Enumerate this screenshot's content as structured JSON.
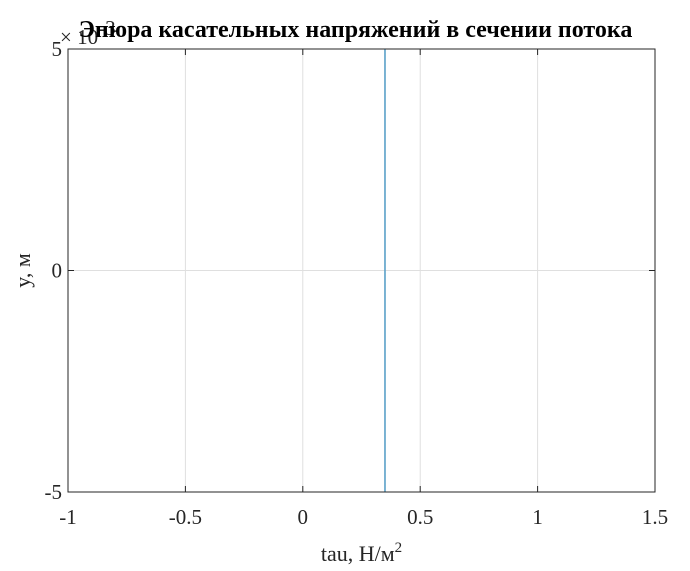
{
  "chart_data": {
    "type": "line",
    "title": "Эпюра касательных напряжений в сечении потока",
    "xlabel": "tau, Н/м",
    "xlabel_superscript": "2",
    "ylabel": "y, м",
    "xlim": [
      -1,
      1.5
    ],
    "ylim": [
      -5,
      5
    ],
    "y_multiplier_text": "× 10",
    "y_multiplier_exponent": "-3",
    "x_ticks": [
      -1,
      -0.5,
      0,
      0.5,
      1,
      1.5
    ],
    "x_tick_labels": [
      "-1",
      "-0.5",
      "0",
      "0.5",
      "1",
      "1.5"
    ],
    "y_ticks": [
      -5,
      0,
      5
    ],
    "y_tick_labels": [
      "-5",
      "0",
      "5"
    ],
    "grid": true,
    "series": [
      {
        "x": [
          0.35,
          0.35
        ],
        "y": [
          -5,
          5
        ],
        "color": "#5aa0c8"
      }
    ]
  },
  "colors": {
    "axis": "#262626",
    "grid": "#dfdfdf",
    "background": "#ffffff"
  }
}
